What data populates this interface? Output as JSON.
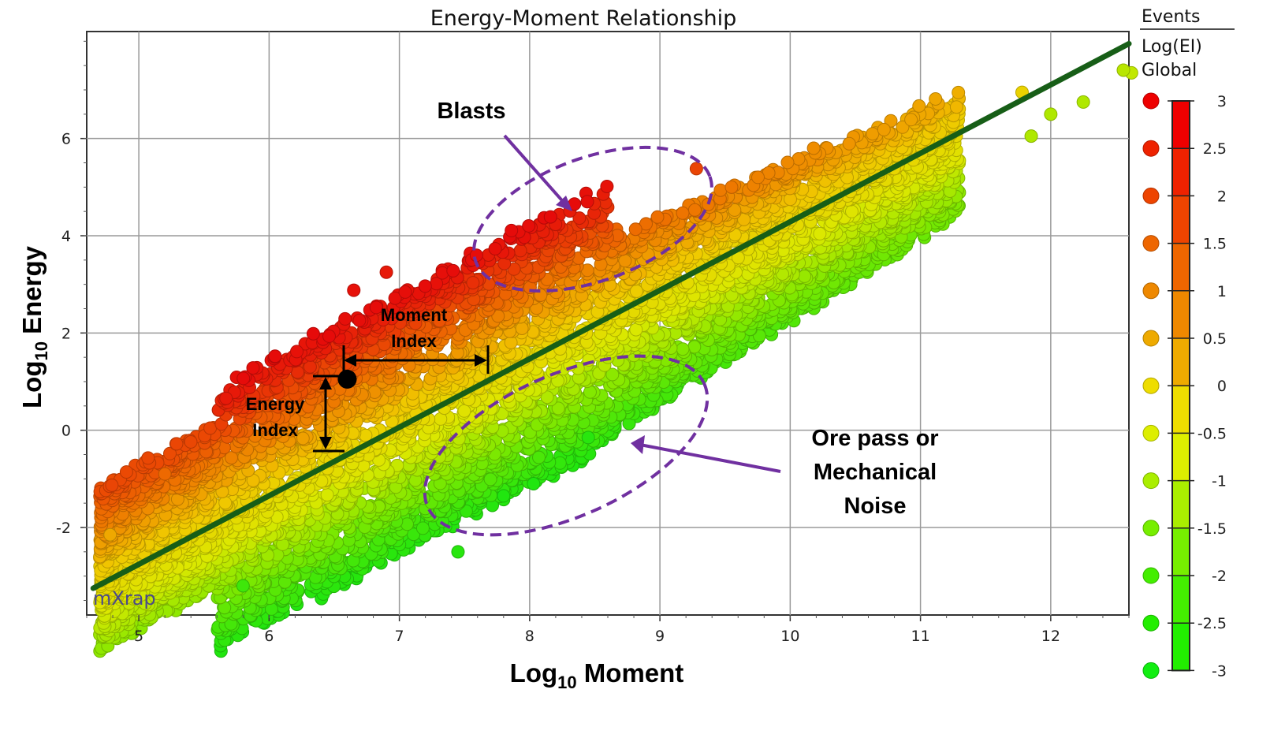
{
  "chart_data": {
    "type": "scatter",
    "title": "Energy-Moment Relationship",
    "xlabel": {
      "main": "Log",
      "sub": "10",
      "tail": " Moment"
    },
    "ylabel": {
      "main": "Log",
      "sub": "10",
      "tail": " Energy"
    },
    "xlim": [
      4.6,
      12.6
    ],
    "ylim": [
      -3.8,
      8.2
    ],
    "xticks": [
      5,
      6,
      7,
      8,
      9,
      10,
      11,
      12
    ],
    "yticks": [
      -2,
      0,
      2,
      4,
      6
    ],
    "grid": true,
    "fit_line": {
      "x": [
        4.65,
        12.6
      ],
      "y": [
        -3.25,
        7.95
      ],
      "color": "#175e17"
    },
    "annotations": {
      "blasts": "Blasts",
      "noise": [
        "Ore pass or",
        "Mechanical",
        "Noise"
      ],
      "moment_index": [
        "Moment",
        "Index"
      ],
      "energy_index": [
        "Energy",
        "Index"
      ]
    },
    "example_event": {
      "x": 6.6,
      "y": 1.05
    },
    "watermark": "mXrap",
    "legend": {
      "header": "Events",
      "metric": "Log(EI)",
      "scope": "Global",
      "colorbar_ticks": [
        "3",
        "2.5",
        "2",
        "1.5",
        "1",
        "0.5",
        "0",
        "-0.5",
        "-1",
        "-1.5",
        "-2",
        "-2.5",
        "-3"
      ],
      "colorbar_colors": [
        "#ee0000",
        "#ee2200",
        "#ee4400",
        "#ee6600",
        "#ee8800",
        "#eeaa00",
        "#eedd00",
        "#ddee00",
        "#aaee00",
        "#77ee00",
        "#44ee00",
        "#22ee00",
        "#11ee11"
      ]
    },
    "notable_points": [
      {
        "x": 9.28,
        "y": 5.38,
        "log_ei": 2.2
      },
      {
        "x": 9.55,
        "y": 5.0,
        "log_ei": 1.5
      },
      {
        "x": 12.62,
        "y": 7.35,
        "log_ei": -0.8
      },
      {
        "x": 12.25,
        "y": 6.75,
        "log_ei": -1.0
      },
      {
        "x": 12.0,
        "y": 6.5,
        "log_ei": -1.0
      },
      {
        "x": 11.78,
        "y": 6.95,
        "log_ei": 0.2
      },
      {
        "x": 11.85,
        "y": 6.05,
        "log_ei": -1.0
      },
      {
        "x": 7.45,
        "y": -2.5,
        "log_ei": -2.7
      },
      {
        "x": 5.8,
        "y": -3.2,
        "log_ei": -2.4
      },
      {
        "x": 6.9,
        "y": 3.25,
        "log_ei": 2.8
      },
      {
        "x": 6.65,
        "y": 2.88,
        "log_ei": 2.9
      },
      {
        "x": 8.03,
        "y": -1.1,
        "log_ei": -2.8
      },
      {
        "x": 7.8,
        "y": -1.35,
        "log_ei": -2.8
      },
      {
        "x": 8.45,
        "y": -0.15,
        "log_ei": -2.7
      },
      {
        "x": 5.2,
        "y": -0.9,
        "log_ei": 1.7
      },
      {
        "x": 4.78,
        "y": -2.15,
        "log_ei": 0.9
      }
    ]
  }
}
